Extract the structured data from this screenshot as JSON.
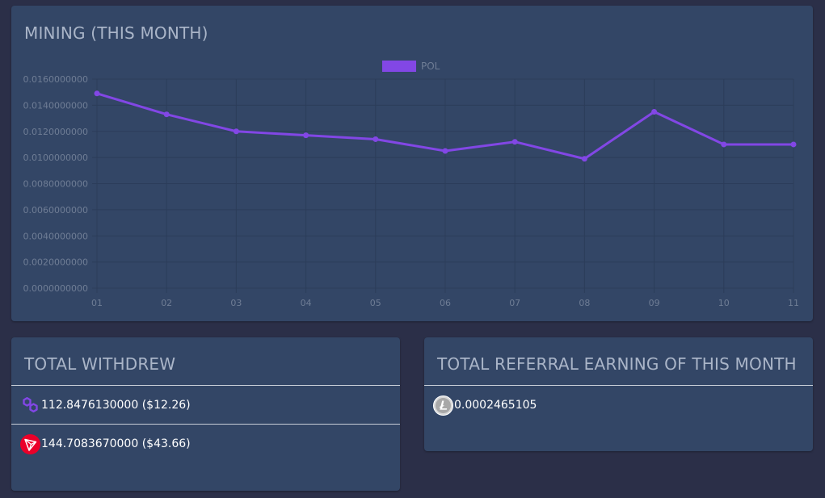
{
  "mining": {
    "title": "MINING (THIS MONTH)"
  },
  "colors": {
    "background": "#2b2f48",
    "card": "#334666",
    "series": "#8247e5",
    "tick_text": "#6f7d95",
    "grid": "#2c3d5a",
    "polygon_icon": "#8247e5",
    "tron_icon": "#eb0029",
    "litecoin_icon": "#bebebe"
  },
  "chart_data": {
    "type": "line",
    "legend_position": "top-center",
    "grid": true,
    "categories": [
      "01",
      "02",
      "03",
      "04",
      "05",
      "06",
      "07",
      "08",
      "09",
      "10",
      "11"
    ],
    "ylim": [
      0,
      0.016
    ],
    "y_ticks": [
      "0.0160000000",
      "0.0140000000",
      "0.0120000000",
      "0.0100000000",
      "0.0080000000",
      "0.0060000000",
      "0.0040000000",
      "0.0020000000",
      "0.0000000000"
    ],
    "series": [
      {
        "name": "POL",
        "color": "#8247e5",
        "values": [
          0.0149,
          0.0133,
          0.012,
          0.0117,
          0.0114,
          0.0105,
          0.0112,
          0.0099,
          0.0135,
          0.011,
          0.011
        ]
      }
    ],
    "title": "",
    "xlabel": "",
    "ylabel": ""
  },
  "withdrew": {
    "title": "TOTAL WITHDREW",
    "items": [
      {
        "icon": "polygon-icon",
        "amount": "112.8476130000",
        "usd": "($12.26)"
      },
      {
        "icon": "tron-icon",
        "amount": "144.7083670000",
        "usd": "($43.66)"
      }
    ]
  },
  "referral": {
    "title": "TOTAL REFERRAL EARNING OF THIS MONTH",
    "items": [
      {
        "icon": "litecoin-icon",
        "amount": "0.0002465105"
      }
    ]
  }
}
